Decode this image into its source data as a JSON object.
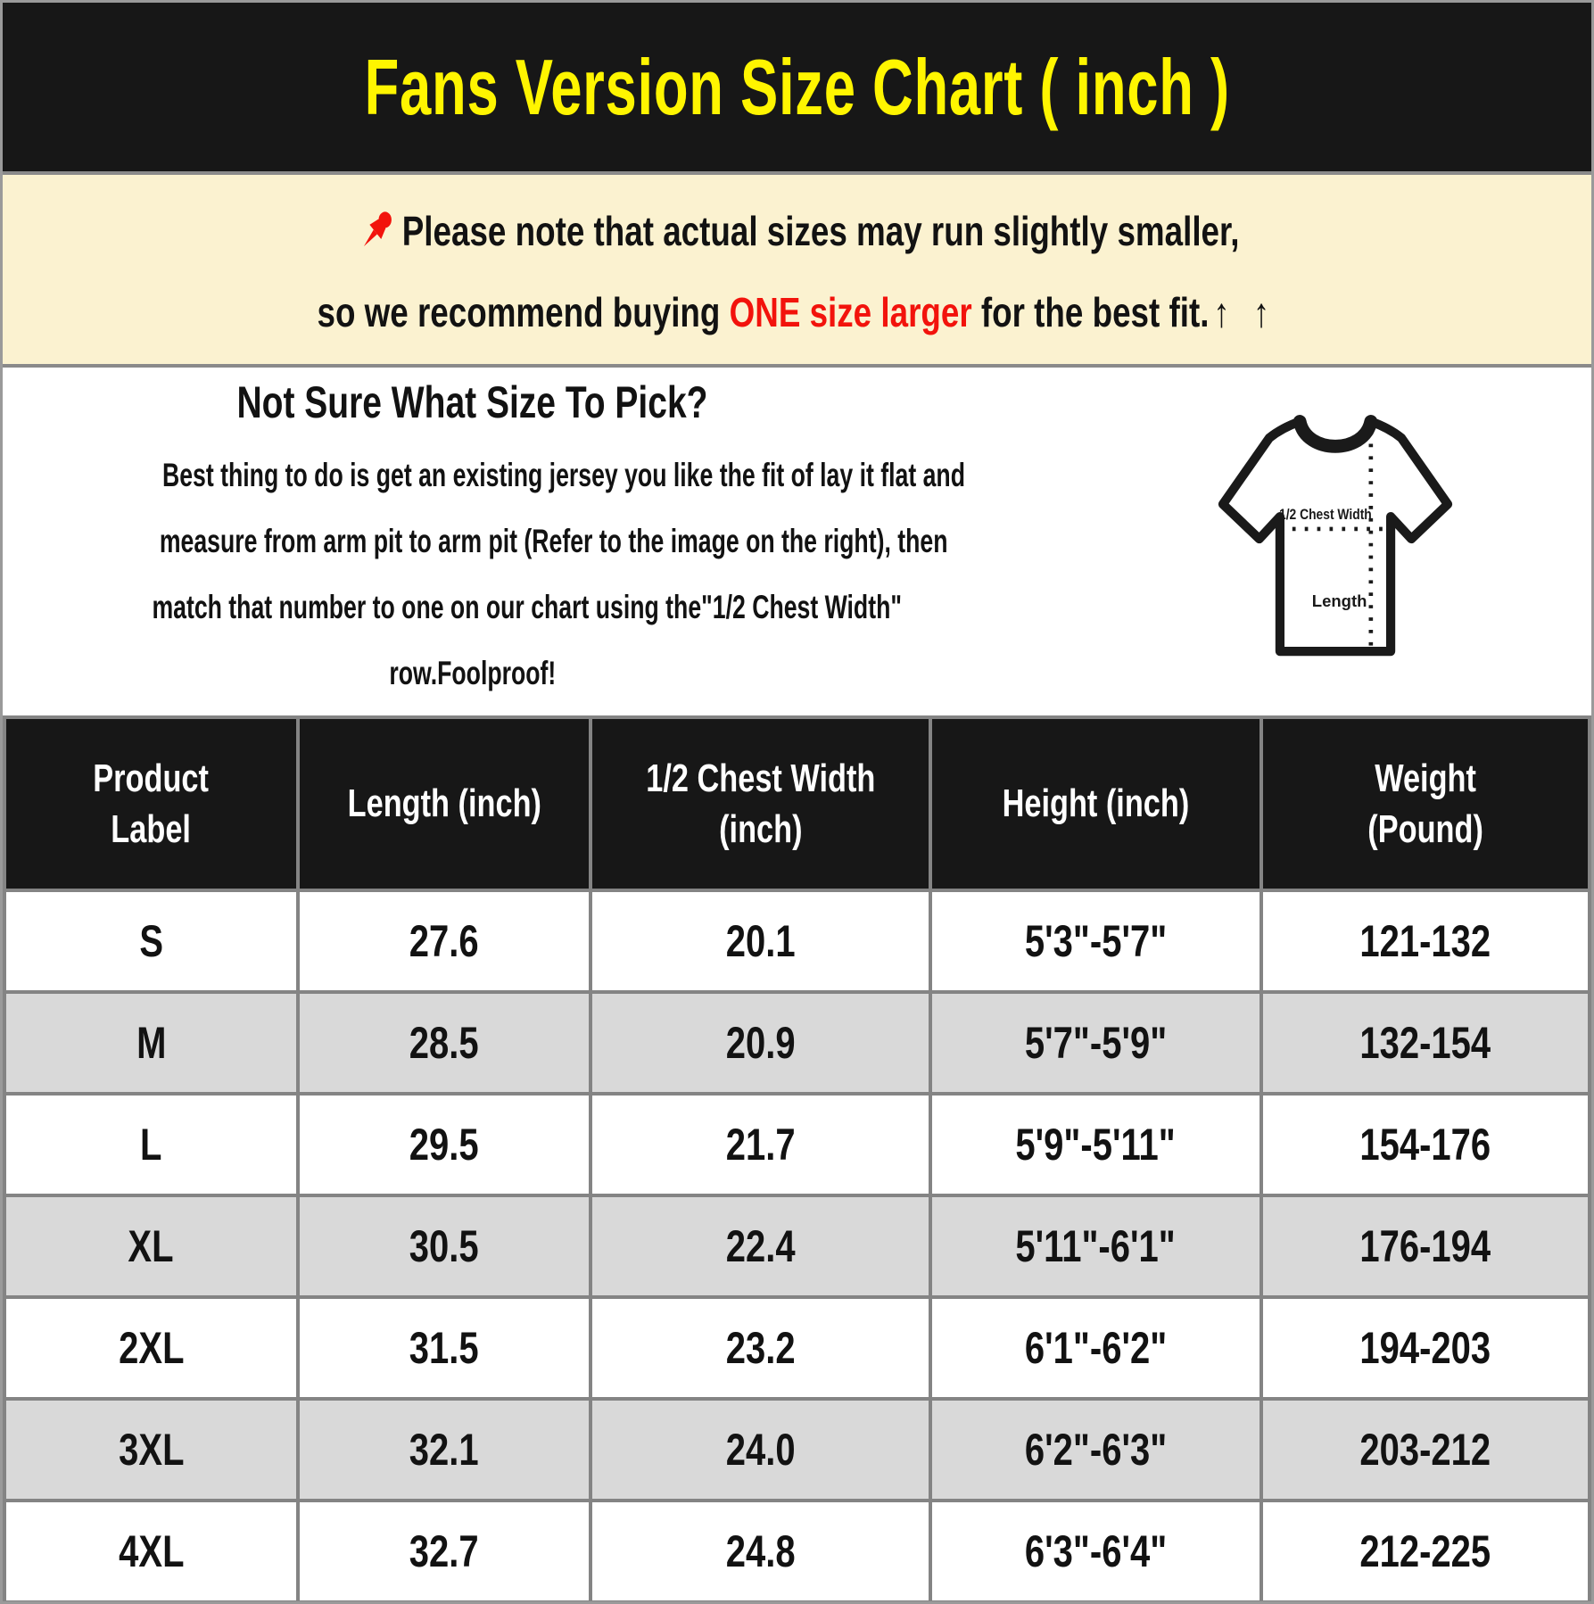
{
  "title": "Fans Version Size Chart ( inch )",
  "colors": {
    "banner_bg": "#171717",
    "title_text": "#FFF500",
    "note_bg": "#FBF2D0",
    "accent_red": "#F2130C",
    "grid_border": "#848484",
    "row_alt_bg": "#D9D9D9",
    "header_row_bg": "#171717",
    "header_row_text": "#FFFFFF"
  },
  "note": {
    "pin_icon": "red-pushpin",
    "line1": "Please note that actual sizes may run slightly smaller,",
    "line2_before": "so we recommend buying ",
    "line2_highlight": "ONE size larger",
    "line2_after": " for the best fit.",
    "arrows": "↑ ↑"
  },
  "guide": {
    "heading": "Not Sure What Size To Pick?",
    "body_lines": [
      "Best thing to do is get an existing jersey you like the fit of lay it flat and",
      "measure from arm pit to arm pit (Refer to the image on the right), then",
      "match that number to one on our chart using the\"1/2 Chest Width\"",
      "row.Foolproof!"
    ],
    "diagram": {
      "chest_label": "1/2 Chest Width",
      "length_label": "Length"
    }
  },
  "table": {
    "headers": [
      [
        "Product",
        "Label"
      ],
      [
        "Length (inch)"
      ],
      [
        "1/2 Chest Width",
        "(inch)"
      ],
      [
        "Height (inch)"
      ],
      [
        "Weight",
        "(Pound)"
      ]
    ],
    "rows": [
      [
        "S",
        "27.6",
        "20.1",
        "5'3\"-5'7\"",
        "121-132"
      ],
      [
        "M",
        "28.5",
        "20.9",
        "5'7\"-5'9\"",
        "132-154"
      ],
      [
        "L",
        "29.5",
        "21.7",
        "5'9\"-5'11\"",
        "154-176"
      ],
      [
        "XL",
        "30.5",
        "22.4",
        "5'11\"-6'1\"",
        "176-194"
      ],
      [
        "2XL",
        "31.5",
        "23.2",
        "6'1\"-6'2\"",
        "194-203"
      ],
      [
        "3XL",
        "32.1",
        "24.0",
        "6'2\"-6'3\"",
        "203-212"
      ],
      [
        "4XL",
        "32.7",
        "24.8",
        "6'3\"-6'4\"",
        "212-225"
      ]
    ]
  }
}
